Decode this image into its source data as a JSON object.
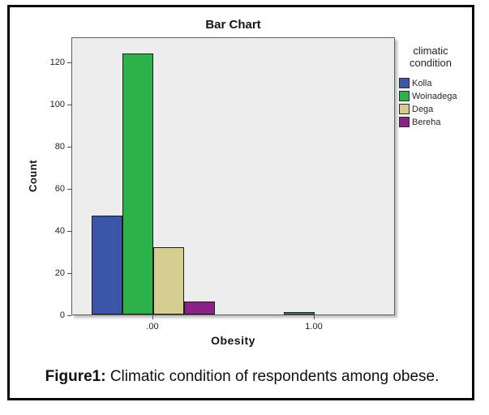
{
  "figure": {
    "caption_prefix": "Figure1:",
    "caption_text": " Climatic condition of respondents among obese."
  },
  "chart_data": {
    "type": "bar",
    "title": "Bar Chart",
    "xlabel": "Obesity",
    "ylabel": "Count",
    "categories": [
      ".00",
      "1.00"
    ],
    "series": [
      {
        "name": "Kolla",
        "color": "#3B55A7",
        "values": [
          47,
          0
        ]
      },
      {
        "name": "Woinadega",
        "color": "#2DB14B",
        "values": [
          124,
          1
        ]
      },
      {
        "name": "Dega",
        "color": "#D6CE91",
        "values": [
          32,
          0
        ]
      },
      {
        "name": "Bereha",
        "color": "#8A2386",
        "values": [
          6,
          0
        ]
      }
    ],
    "yticks": [
      0,
      20,
      40,
      60,
      80,
      100,
      120
    ],
    "ylim": [
      0,
      132
    ],
    "grid": false,
    "legend": {
      "title": "climatic condition",
      "position": "right"
    },
    "plot_bg": "#EDEDED",
    "bar_border": "#1C1C1C"
  }
}
